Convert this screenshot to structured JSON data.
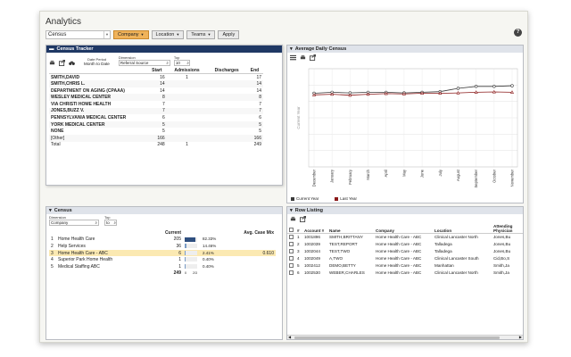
{
  "app": {
    "title": "Analytics"
  },
  "toolbar": {
    "census_value": "Census",
    "company_label": "Company",
    "location_label": "Location",
    "teams_label": "Teams",
    "apply_label": "Apply"
  },
  "census_tracker": {
    "title": "Census Tracker",
    "date_period_label": "Date Period",
    "date_period_value": "Month to Date",
    "dimension_label": "Dimension",
    "dimension_value": "Referral Source",
    "top_label": "Top",
    "top_value": "10",
    "columns": [
      "",
      "Start",
      "Admissions",
      "Discharges",
      "End"
    ],
    "rows": [
      {
        "name": "SMITH,DAVID",
        "start": "16",
        "admissions": "1",
        "discharges": "",
        "end": "17"
      },
      {
        "name": "SMITH,CHRIS L.",
        "start": "14",
        "admissions": "",
        "discharges": "",
        "end": "14"
      },
      {
        "name": "DEPARTMENT ON AGING (CPAAA)",
        "start": "14",
        "admissions": "",
        "discharges": "",
        "end": "14"
      },
      {
        "name": "WESLEY MEDICAL CENTER",
        "start": "8",
        "admissions": "",
        "discharges": "",
        "end": "8"
      },
      {
        "name": "VIA CHRISTI HOME HEALTH",
        "start": "7",
        "admissions": "",
        "discharges": "",
        "end": "7"
      },
      {
        "name": "JONES,BUZZ V.",
        "start": "7",
        "admissions": "",
        "discharges": "",
        "end": "7"
      },
      {
        "name": "PENNSYLVANIA MEDICAL CENTER",
        "start": "6",
        "admissions": "",
        "discharges": "",
        "end": "6"
      },
      {
        "name": "YORK MEDICAL CENTER",
        "start": "5",
        "admissions": "",
        "discharges": "",
        "end": "5"
      },
      {
        "name": "NONE",
        "start": "5",
        "admissions": "",
        "discharges": "",
        "end": "5"
      },
      {
        "name": "[Other]",
        "start": "166",
        "admissions": "",
        "discharges": "",
        "end": "166"
      },
      {
        "name": "Total",
        "start": "248",
        "admissions": "1",
        "discharges": "",
        "end": "249"
      }
    ]
  },
  "avg_census": {
    "title": "Average Daily Census",
    "ylabel": "Current Year",
    "legend": [
      "Current Year",
      "Last Year"
    ]
  },
  "chart_data": {
    "type": "line",
    "title": "Average Daily Census",
    "ylabel": "Current Year",
    "categories": [
      "December",
      "January",
      "February",
      "March",
      "April",
      "May",
      "June",
      "July",
      "August",
      "September",
      "October",
      "November"
    ],
    "ylim": [
      0,
      300
    ],
    "series": [
      {
        "name": "Current Year",
        "color": "#3a3a3a",
        "values": [
          225,
          228,
          226,
          228,
          228,
          226,
          228,
          230,
          240,
          246,
          246,
          248
        ]
      },
      {
        "name": "Last Year",
        "color": "#8b1a1a",
        "values": [
          220,
          222,
          219,
          222,
          224,
          223,
          225,
          225,
          226,
          228,
          229,
          228
        ]
      }
    ],
    "grid": true,
    "legend_position": "bottom-left"
  },
  "census_panel": {
    "title": "Census",
    "dimension_label": "Dimension",
    "dimension_value": "Company",
    "top_label": "Top",
    "to_value": "to",
    "current_header": "Current",
    "avg_header": "Avg. Case Mix",
    "rows": [
      {
        "n": "1",
        "name": "Home Health Care",
        "current": "205",
        "pct": "82.33%",
        "pct_value": 82.33,
        "mix": ""
      },
      {
        "n": "2",
        "name": "Help Services",
        "current": "36",
        "pct": "14.46%",
        "pct_value": 14.46,
        "mix": ""
      },
      {
        "n": "3",
        "name": "Home Health Care - ABC",
        "current": "6",
        "pct": "2.41%",
        "pct_value": 2.41,
        "mix": "0.610"
      },
      {
        "n": "4",
        "name": "Superior Park Home Health",
        "current": "1",
        "pct": "0.40%",
        "pct_value": 0.4,
        "mix": ""
      },
      {
        "n": "5",
        "name": "Medical Staffing ABC",
        "current": "1",
        "pct": "0.40%",
        "pct_value": 0.4,
        "mix": ""
      }
    ],
    "total": "249",
    "axis_min": "0",
    "axis_max": "2/3"
  },
  "row_listing": {
    "title": "Row Listing",
    "columns": [
      "#",
      "Account #",
      "Name",
      "Company",
      "Location",
      "Attending Physician"
    ],
    "rows": [
      {
        "n": "1",
        "account": "1001896",
        "name": "SMITH,BRITTANY",
        "company": "Home Health Care - ABC",
        "location": "Clinical Lancaster North",
        "physician": "Jones,Bu"
      },
      {
        "n": "2",
        "account": "1002039",
        "name": "TEST,REPORT",
        "company": "Home Health Care - ABC",
        "location": "Talladega",
        "physician": "Jones,Bu"
      },
      {
        "n": "3",
        "account": "1002044",
        "name": "TEST,TWO",
        "company": "Home Health Care - ABC",
        "location": "Talladega",
        "physician": "Jones,Bu"
      },
      {
        "n": "4",
        "account": "1002049",
        "name": "A,TWO",
        "company": "Home Health Care - ABC",
        "location": "Clinical Lancaster South",
        "physician": "Cid,Bo,S"
      },
      {
        "n": "5",
        "account": "1002412",
        "name": "DEMO,BETTY",
        "company": "Home Health Care - ABC",
        "location": "Manhattan",
        "physician": "Smith,Ja"
      },
      {
        "n": "6",
        "account": "1002530",
        "name": "WEBER,CHARLES",
        "company": "Home Health Care - ABC",
        "location": "Clinical Lancaster North",
        "physician": "Smith,Ja"
      }
    ]
  }
}
